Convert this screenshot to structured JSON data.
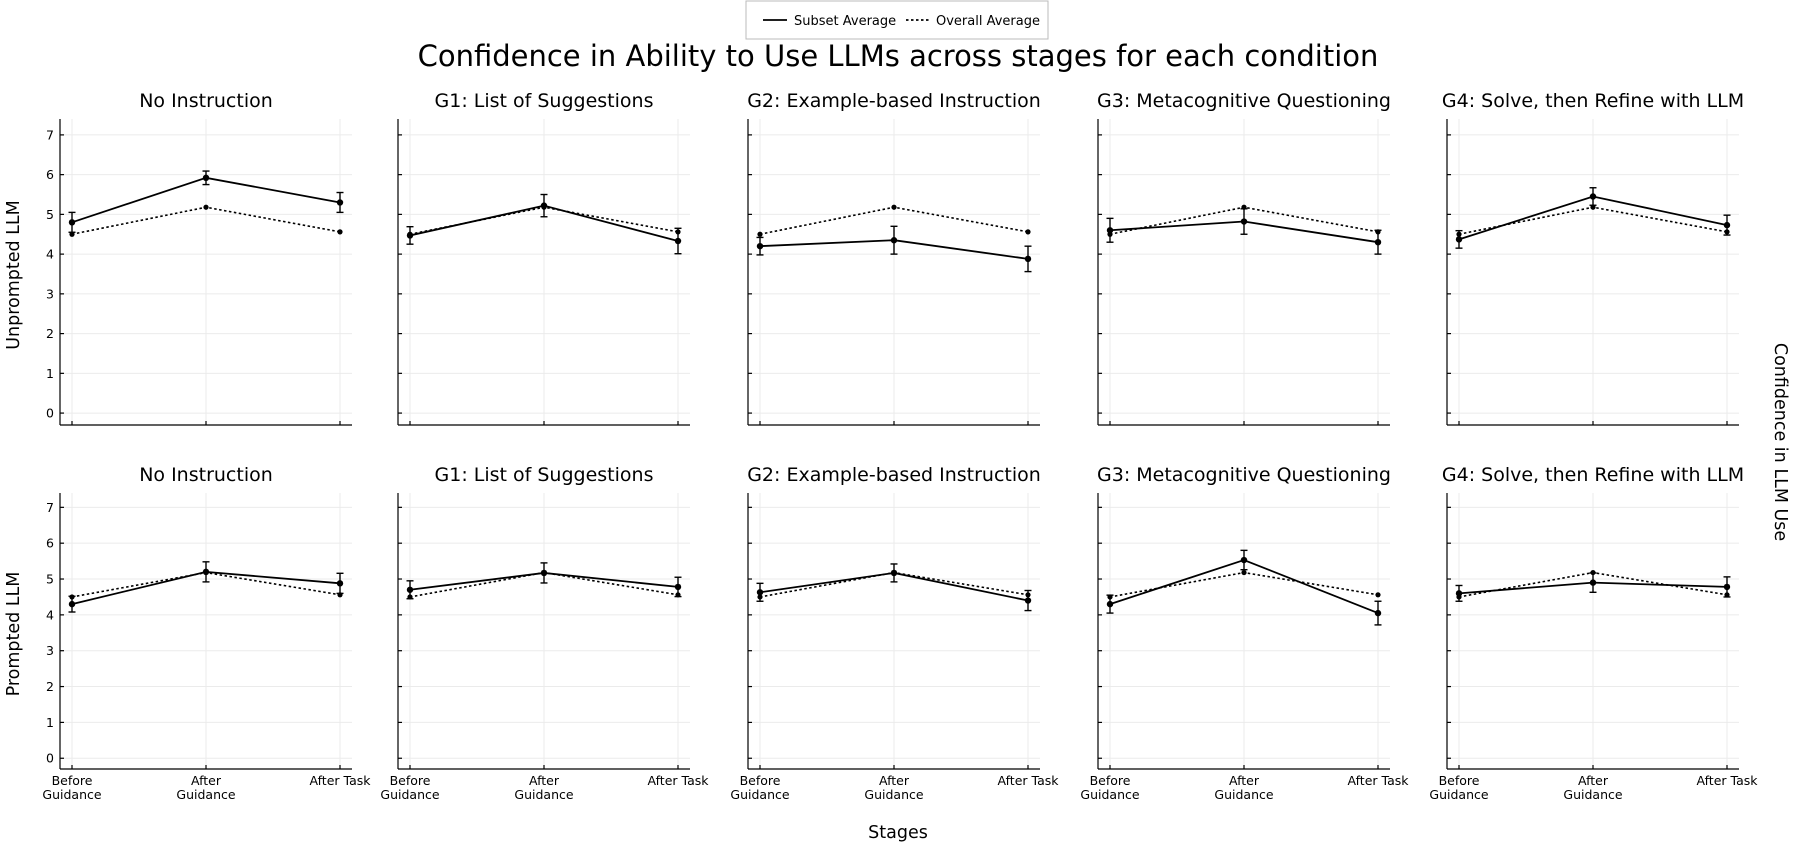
{
  "figure": {
    "title": "Confidence in Ability to Use LLMs across stages for each condition",
    "xlabel": "Stages",
    "right_label": "Confidence in LLM Use",
    "legend": {
      "subset": "Subset Average",
      "overall": "Overall Average"
    }
  },
  "chart_data": {
    "type": "line",
    "categories": [
      "Before\nGuidance",
      "After\nGuidance",
      "After Task"
    ],
    "ylim": [
      -0.3,
      7.4
    ],
    "yticks": [
      0,
      1,
      2,
      3,
      4,
      5,
      6,
      7
    ],
    "grid": true,
    "legend_position": "top-center",
    "rows": [
      {
        "row_label": "Unprompted LLM",
        "panels": [
          {
            "title": "No Instruction",
            "subset": [
              4.8,
              5.92,
              5.3
            ],
            "subset_err": [
              0.25,
              0.17,
              0.25
            ],
            "overall": [
              4.5,
              5.18,
              4.56
            ]
          },
          {
            "title": "G1: List of Suggestions",
            "subset": [
              4.47,
              5.22,
              4.33
            ],
            "subset_err": [
              0.22,
              0.28,
              0.32
            ],
            "overall": [
              4.5,
              5.18,
              4.56
            ]
          },
          {
            "title": "G2: Example-based Instruction",
            "subset": [
              4.2,
              4.35,
              3.88
            ],
            "subset_err": [
              0.22,
              0.35,
              0.32
            ],
            "overall": [
              4.5,
              5.18,
              4.56
            ]
          },
          {
            "title": "G3: Metacognitive Questioning",
            "subset": [
              4.6,
              4.82,
              4.3
            ],
            "subset_err": [
              0.3,
              0.32,
              0.3
            ],
            "overall": [
              4.5,
              5.18,
              4.56
            ]
          },
          {
            "title": "G4: Solve, then Refine with LLM",
            "subset": [
              4.37,
              5.45,
              4.73
            ],
            "subset_err": [
              0.22,
              0.22,
              0.25
            ],
            "overall": [
              4.5,
              5.18,
              4.56
            ]
          }
        ]
      },
      {
        "row_label": "Prompted LLM",
        "panels": [
          {
            "title": "No Instruction",
            "subset": [
              4.3,
              5.2,
              4.88
            ],
            "subset_err": [
              0.22,
              0.28,
              0.28
            ],
            "overall": [
              4.5,
              5.18,
              4.56
            ]
          },
          {
            "title": "G1: List of Suggestions",
            "subset": [
              4.7,
              5.17,
              4.78
            ],
            "subset_err": [
              0.25,
              0.28,
              0.27
            ],
            "overall": [
              4.5,
              5.18,
              4.56
            ]
          },
          {
            "title": "G2: Example-based Instruction",
            "subset": [
              4.63,
              5.17,
              4.4
            ],
            "subset_err": [
              0.25,
              0.25,
              0.28
            ],
            "overall": [
              4.5,
              5.18,
              4.56
            ]
          },
          {
            "title": "G3: Metacognitive Questioning",
            "subset": [
              4.3,
              5.53,
              4.05
            ],
            "subset_err": [
              0.25,
              0.27,
              0.33
            ],
            "overall": [
              4.5,
              5.18,
              4.56
            ]
          },
          {
            "title": "G4: Solve, then Refine with LLM",
            "subset": [
              4.6,
              4.9,
              4.78
            ],
            "subset_err": [
              0.22,
              0.27,
              0.28
            ],
            "overall": [
              4.5,
              5.18,
              4.56
            ]
          }
        ]
      }
    ]
  }
}
